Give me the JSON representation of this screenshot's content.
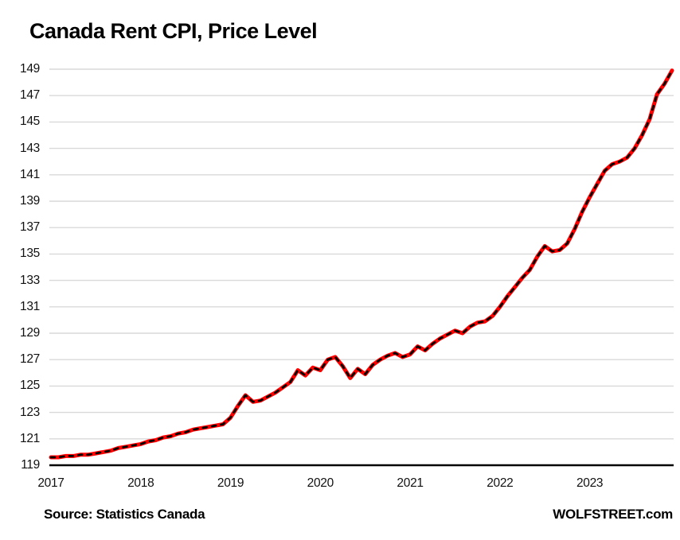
{
  "footer": {
    "source": "Source: Statistics Canada",
    "brand": "WOLFSTREET.com"
  },
  "chart_data": {
    "type": "line",
    "title": "Canada Rent CPI, Price Level",
    "xlabel": "",
    "ylabel": "",
    "x_tick_labels": [
      "2017",
      "2018",
      "2019",
      "2020",
      "2021",
      "2022",
      "2023"
    ],
    "y_ticks": [
      119,
      121,
      123,
      125,
      127,
      129,
      131,
      133,
      135,
      137,
      139,
      141,
      143,
      145,
      147,
      149
    ],
    "ylim": [
      119,
      149
    ],
    "grid": "horizontal",
    "grid_color": "#d9d9d9",
    "axis_color": "#000000",
    "legend": "none",
    "x_start": "2017-01",
    "x_end": "2023-12",
    "x_frequency": "monthly",
    "series": [
      {
        "name": "Canada Rent CPI (price level)",
        "color": "#ff0000",
        "dash_overlay_color": "#000000",
        "values": [
          119.6,
          119.6,
          119.7,
          119.7,
          119.8,
          119.8,
          119.9,
          120.0,
          120.1,
          120.3,
          120.4,
          120.5,
          120.6,
          120.8,
          120.9,
          121.1,
          121.2,
          121.4,
          121.5,
          121.7,
          121.8,
          121.9,
          122.0,
          122.1,
          122.6,
          123.5,
          124.3,
          123.8,
          123.9,
          124.2,
          124.5,
          124.9,
          125.3,
          126.2,
          125.8,
          126.4,
          126.2,
          127.0,
          127.2,
          126.5,
          125.6,
          126.3,
          125.9,
          126.6,
          127.0,
          127.3,
          127.5,
          127.2,
          127.4,
          128.0,
          127.7,
          128.2,
          128.6,
          128.9,
          129.2,
          129.0,
          129.5,
          129.8,
          129.9,
          130.3,
          131.0,
          131.8,
          132.5,
          133.2,
          133.8,
          134.8,
          135.6,
          135.2,
          135.3,
          135.8,
          136.9,
          138.2,
          139.3,
          140.3,
          141.3,
          141.8,
          142.0,
          142.3,
          143.0,
          144.0,
          145.2,
          147.1,
          147.9,
          148.9
        ]
      }
    ]
  }
}
